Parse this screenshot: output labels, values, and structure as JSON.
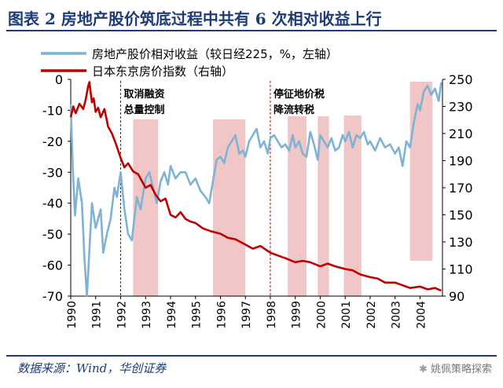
{
  "header": {
    "title": "图表 2   房地产股价筑底过程中共有 6 次相对收益上行"
  },
  "footer": {
    "source": "数据来源：Wind，华创证券",
    "watermark": "姚佩策略探索"
  },
  "colors": {
    "relative": "#7eb3d3",
    "land": "#c00000",
    "shade": "#f0c6c6",
    "marker": "#c00000",
    "axis": "#000000"
  },
  "chart_data": {
    "type": "line",
    "title": "图表 2   房地产股价筑底过程中共有 6 次相对收益上行",
    "legend": [
      "房地产股价相对收益（较日经225，%，左轴）",
      "日本东京房价指数（右轴）"
    ],
    "legend_position": "top-left",
    "x_range": [
      1990.0,
      2004.9
    ],
    "x_ticks": [
      1990,
      1991,
      1992,
      1993,
      1994,
      1995,
      1996,
      1997,
      1998,
      1999,
      2000,
      2001,
      2002,
      2003,
      2004
    ],
    "y_left": {
      "range": [
        -70,
        0
      ],
      "ticks": [
        0,
        -10,
        -20,
        -30,
        -40,
        -50,
        -60,
        -70
      ]
    },
    "y_right": {
      "range": [
        90,
        250
      ],
      "ticks": [
        250,
        230,
        210,
        190,
        170,
        150,
        130,
        110,
        90
      ]
    },
    "shaded_periods": [
      [
        1992.5,
        1993.5
      ],
      [
        1995.7,
        1997.0
      ],
      [
        1998.7,
        1999.45
      ],
      [
        1999.9,
        2000.35
      ],
      [
        2000.95,
        2001.65
      ],
      [
        2003.6,
        2004.5
      ]
    ],
    "markers": [
      {
        "x": 1992.0,
        "label": [
          "取消融资",
          "总量控制"
        ]
      },
      {
        "x": 1998.0,
        "label": [
          "停征地价税",
          "降流转税"
        ]
      }
    ],
    "series": [
      {
        "name": "房地产股价相对收益（较日经225，%，左轴）",
        "axis": "left",
        "x": [
          1990.0,
          1990.08,
          1990.17,
          1990.3,
          1990.45,
          1990.55,
          1990.65,
          1990.75,
          1990.85,
          1991.0,
          1991.1,
          1991.2,
          1991.3,
          1991.45,
          1991.6,
          1991.75,
          1991.85,
          1992.0,
          1992.15,
          1992.3,
          1992.45,
          1992.55,
          1992.65,
          1992.8,
          1993.0,
          1993.15,
          1993.3,
          1993.45,
          1993.6,
          1993.75,
          1993.9,
          1994.0,
          1994.2,
          1994.4,
          1994.6,
          1994.8,
          1995.0,
          1995.2,
          1995.4,
          1995.55,
          1995.7,
          1995.85,
          1996.0,
          1996.15,
          1996.3,
          1996.45,
          1996.6,
          1996.75,
          1996.9,
          1997.0,
          1997.15,
          1997.3,
          1997.45,
          1997.6,
          1997.75,
          1997.9,
          1998.0,
          1998.15,
          1998.3,
          1998.45,
          1998.6,
          1998.75,
          1998.9,
          1999.0,
          1999.15,
          1999.3,
          1999.45,
          1999.6,
          1999.75,
          1999.9,
          2000.0,
          2000.15,
          2000.3,
          2000.45,
          2000.6,
          2000.75,
          2000.9,
          2001.0,
          2001.15,
          2001.3,
          2001.45,
          2001.6,
          2001.75,
          2001.9,
          2002.0,
          2002.2,
          2002.4,
          2002.6,
          2002.8,
          2003.0,
          2003.15,
          2003.3,
          2003.45,
          2003.6,
          2003.75,
          2003.9,
          2004.0,
          2004.15,
          2004.3,
          2004.45,
          2004.6,
          2004.75,
          2004.85
        ],
        "values": [
          -8,
          -28,
          -44,
          -32,
          -40,
          -58,
          -70,
          -55,
          -40,
          -48,
          -45,
          -42,
          -56,
          -50,
          -45,
          -35,
          -38,
          -30,
          -42,
          -50,
          -52,
          -45,
          -38,
          -42,
          -32,
          -30,
          -35,
          -40,
          -33,
          -30,
          -34,
          -28,
          -32,
          -30,
          -30,
          -34,
          -32,
          -36,
          -38,
          -40,
          -33,
          -26,
          -25,
          -27,
          -22,
          -20,
          -18,
          -24,
          -23,
          -25,
          -20,
          -18,
          -16,
          -22,
          -20,
          -24,
          -19,
          -18,
          -20,
          -22,
          -21,
          -23,
          -18,
          -22,
          -20,
          -24,
          -25,
          -17,
          -21,
          -26,
          -18,
          -20,
          -22,
          -19,
          -23,
          -22,
          -18,
          -20,
          -17,
          -22,
          -18,
          -19,
          -17,
          -21,
          -20,
          -23,
          -19,
          -22,
          -21,
          -24,
          -22,
          -28,
          -20,
          -22,
          -14,
          -8,
          -10,
          -4,
          -2,
          -5,
          -3,
          -7,
          -1
        ]
      },
      {
        "name": "日本东京房价指数（右轴）",
        "axis": "right",
        "x": [
          1990.0,
          1990.1,
          1990.2,
          1990.35,
          1990.5,
          1990.6,
          1990.7,
          1990.75,
          1990.8,
          1990.85,
          1990.92,
          1991.0,
          1991.1,
          1991.2,
          1991.35,
          1991.5,
          1991.65,
          1991.8,
          1992.0,
          1992.15,
          1992.3,
          1992.5,
          1992.7,
          1993.0,
          1993.2,
          1993.4,
          1993.6,
          1993.8,
          1994.0,
          1994.2,
          1994.4,
          1994.6,
          1994.8,
          1995.0,
          1995.3,
          1995.6,
          1996.0,
          1996.3,
          1996.6,
          1997.0,
          1997.3,
          1997.6,
          1998.0,
          1998.3,
          1998.6,
          1999.0,
          1999.3,
          1999.6,
          2000.0,
          2000.3,
          2000.6,
          2001.0,
          2001.3,
          2001.6,
          2002.0,
          2002.3,
          2002.6,
          2003.0,
          2003.3,
          2003.6,
          2004.0,
          2004.3,
          2004.6,
          2004.85
        ],
        "values": [
          222,
          230,
          225,
          232,
          228,
          235,
          245,
          248,
          240,
          233,
          236,
          226,
          229,
          222,
          228,
          215,
          210,
          203,
          192,
          185,
          188,
          182,
          180,
          170,
          172,
          165,
          160,
          162,
          150,
          148,
          152,
          147,
          145,
          144,
          140,
          138,
          136,
          133,
          132,
          128,
          125,
          127,
          122,
          120,
          118,
          115,
          116,
          115,
          112,
          114,
          112,
          110,
          109,
          106,
          104,
          103,
          100,
          100,
          98,
          96,
          97,
          95,
          96,
          94
        ]
      }
    ]
  }
}
